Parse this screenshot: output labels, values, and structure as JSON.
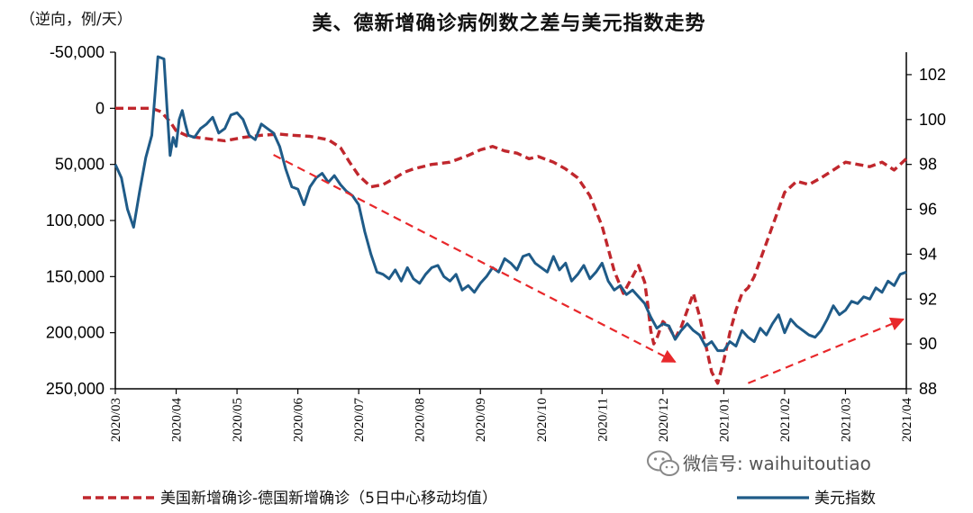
{
  "chart_data": {
    "type": "line",
    "title": "美、德新增确诊病例数之差与美元指数走势",
    "y_left_label": "（逆向，例/天）",
    "y_left_range": [
      -50000,
      250000
    ],
    "y_left_inverted": true,
    "y_left_ticks": [
      "-50,000",
      "0",
      "50,000",
      "100,000",
      "150,000",
      "200,000",
      "250,000"
    ],
    "y_left_tick_values": [
      -50000,
      0,
      50000,
      100000,
      150000,
      200000,
      250000
    ],
    "y_right_range": [
      88,
      103
    ],
    "y_right_ticks": [
      "88",
      "90",
      "92",
      "94",
      "96",
      "98",
      "100",
      "102"
    ],
    "y_right_tick_values": [
      88,
      90,
      92,
      94,
      96,
      98,
      100,
      102
    ],
    "x_range": [
      0,
      13
    ],
    "x_ticks": [
      "2020/03",
      "2020/04",
      "2020/05",
      "2020/06",
      "2020/07",
      "2020/08",
      "2020/09",
      "2020/10",
      "2020/11",
      "2020/12",
      "2021/01",
      "2021/02",
      "2021/03",
      "2021/04"
    ],
    "x_note": "x values are months elapsed since 2020/03",
    "series": [
      {
        "name": "美国新增确诊-德国新增确诊（5日中心移动均值）",
        "axis": "left",
        "style": "dashed",
        "color": "#c0272d",
        "x": [
          0,
          0.3,
          0.6,
          0.75,
          0.9,
          1.0,
          1.2,
          1.5,
          1.8,
          2.1,
          2.4,
          2.7,
          2.9,
          3.2,
          3.5,
          3.7,
          3.85,
          4.0,
          4.2,
          4.4,
          4.6,
          4.75,
          4.9,
          5.2,
          5.5,
          5.8,
          6.0,
          6.2,
          6.4,
          6.6,
          6.8,
          6.95,
          7.2,
          7.4,
          7.6,
          7.8,
          8.0,
          8.2,
          8.35,
          8.5,
          8.6,
          8.7,
          8.75,
          8.8,
          8.85,
          8.9,
          9.0,
          9.1,
          9.2,
          9.3,
          9.4,
          9.5,
          9.6,
          9.7,
          9.8,
          9.9,
          10.0,
          10.1,
          10.2,
          10.3,
          10.4,
          10.5,
          10.6,
          10.7,
          10.8,
          10.9,
          11.0,
          11.2,
          11.4,
          11.6,
          11.8,
          12.0,
          12.2,
          12.4,
          12.6,
          12.8,
          13.0
        ],
        "values": [
          0,
          0,
          0,
          3000,
          12000,
          20000,
          25000,
          27000,
          29000,
          26000,
          24000,
          23000,
          24000,
          25000,
          28000,
          35000,
          48000,
          60000,
          70000,
          68000,
          62000,
          57000,
          54000,
          50000,
          48000,
          42000,
          37000,
          34000,
          38000,
          40000,
          45000,
          43000,
          48000,
          54000,
          62000,
          78000,
          105000,
          145000,
          165000,
          150000,
          140000,
          155000,
          175000,
          198000,
          210000,
          205000,
          190000,
          195000,
          205000,
          195000,
          180000,
          165000,
          185000,
          210000,
          235000,
          245000,
          225000,
          200000,
          180000,
          165000,
          160000,
          150000,
          135000,
          120000,
          105000,
          90000,
          75000,
          65000,
          68000,
          62000,
          55000,
          48000,
          50000,
          52000,
          48000,
          55000,
          45000
        ]
      },
      {
        "name": "美元指数",
        "axis": "right",
        "style": "solid",
        "color": "#1f5b88",
        "x": [
          0,
          0.1,
          0.2,
          0.3,
          0.4,
          0.5,
          0.6,
          0.7,
          0.8,
          0.85,
          0.9,
          0.95,
          1.0,
          1.05,
          1.1,
          1.15,
          1.2,
          1.3,
          1.4,
          1.5,
          1.6,
          1.7,
          1.8,
          1.9,
          2.0,
          2.1,
          2.2,
          2.3,
          2.4,
          2.5,
          2.6,
          2.7,
          2.8,
          2.9,
          3.0,
          3.1,
          3.2,
          3.3,
          3.4,
          3.5,
          3.6,
          3.7,
          3.8,
          3.9,
          4.0,
          4.1,
          4.2,
          4.3,
          4.4,
          4.5,
          4.6,
          4.7,
          4.8,
          4.9,
          5.0,
          5.1,
          5.2,
          5.3,
          5.4,
          5.5,
          5.6,
          5.7,
          5.8,
          5.9,
          6.0,
          6.1,
          6.2,
          6.3,
          6.4,
          6.5,
          6.6,
          6.7,
          6.8,
          6.9,
          7.0,
          7.1,
          7.2,
          7.3,
          7.4,
          7.5,
          7.6,
          7.7,
          7.8,
          7.9,
          8.0,
          8.1,
          8.2,
          8.3,
          8.4,
          8.5,
          8.6,
          8.7,
          8.8,
          8.9,
          9.0,
          9.1,
          9.2,
          9.3,
          9.4,
          9.5,
          9.6,
          9.7,
          9.8,
          9.9,
          10.0,
          10.1,
          10.2,
          10.3,
          10.4,
          10.5,
          10.6,
          10.7,
          10.8,
          10.9,
          11.0,
          11.1,
          11.2,
          11.3,
          11.4,
          11.5,
          11.6,
          11.7,
          11.8,
          11.9,
          12.0,
          12.1,
          12.2,
          12.3,
          12.4,
          12.5,
          12.6,
          12.7,
          12.8,
          12.9,
          13.0
        ],
        "values": [
          98.0,
          97.4,
          96.0,
          95.2,
          96.8,
          98.3,
          99.3,
          102.8,
          102.7,
          100.5,
          98.4,
          99.2,
          98.8,
          100.0,
          100.4,
          99.8,
          99.3,
          99.2,
          99.6,
          99.8,
          100.1,
          99.4,
          99.6,
          100.2,
          100.3,
          100.0,
          99.3,
          99.1,
          99.8,
          99.6,
          99.4,
          98.8,
          97.8,
          97.0,
          96.9,
          96.2,
          97.0,
          97.4,
          97.6,
          97.2,
          97.5,
          97.1,
          96.8,
          96.6,
          96.2,
          95.0,
          94.0,
          93.2,
          93.1,
          92.9,
          93.3,
          92.8,
          93.4,
          92.9,
          92.7,
          93.1,
          93.4,
          93.5,
          93.0,
          92.8,
          93.1,
          92.4,
          92.6,
          92.3,
          92.7,
          93.0,
          93.4,
          93.2,
          93.8,
          93.6,
          93.3,
          93.9,
          94.0,
          93.6,
          93.4,
          93.2,
          93.9,
          93.3,
          93.6,
          92.8,
          93.1,
          93.5,
          92.9,
          93.2,
          93.6,
          92.8,
          92.4,
          92.6,
          92.2,
          92.4,
          92.1,
          91.8,
          91.2,
          90.7,
          90.9,
          90.8,
          90.2,
          90.6,
          90.9,
          90.6,
          90.4,
          89.9,
          90.1,
          89.7,
          89.7,
          90.1,
          89.9,
          90.6,
          90.3,
          90.1,
          90.7,
          90.4,
          90.9,
          91.3,
          90.5,
          91.1,
          90.8,
          90.6,
          90.4,
          90.3,
          90.6,
          91.1,
          91.7,
          91.3,
          91.5,
          91.9,
          91.8,
          92.1,
          92.0,
          92.5,
          92.3,
          92.8,
          92.6,
          93.1,
          93.2
        ]
      }
    ],
    "legend": [
      {
        "label": "美国新增确诊-德国新增确诊（5日中心移动均值）",
        "style": "dashed",
        "color": "#c0272d"
      },
      {
        "label": "美元指数",
        "style": "solid",
        "color": "#1f5b88"
      }
    ],
    "legend_position": "bottom",
    "annotations": {
      "arrows": [
        {
          "from": [
            2.6,
            41500
          ],
          "to": [
            9.2,
            226000
          ],
          "axis": "left",
          "style": "dashed",
          "color": "#e8282b"
        },
        {
          "from": [
            10.4,
            245000
          ],
          "to": [
            12.95,
            188000
          ],
          "axis": "left",
          "style": "dashed",
          "color": "#e8282b"
        }
      ]
    }
  },
  "watermark": {
    "text": "微信号: waihuitoutiao",
    "icon": "wechat-icon"
  },
  "colors": {
    "us_germany_diff": "#c0272d",
    "usd_index": "#1f5b88",
    "arrow": "#e8282b",
    "axis": "#000000"
  }
}
